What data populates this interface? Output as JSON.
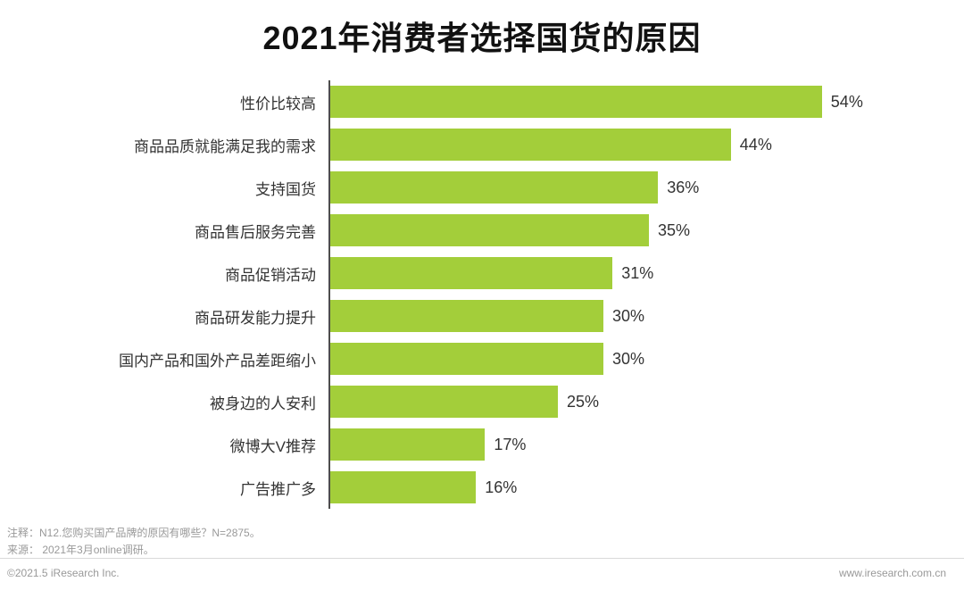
{
  "title": "2021年消费者选择国货的原因",
  "chart_data": {
    "type": "bar",
    "orientation": "horizontal",
    "title": "2021年消费者选择国货的原因",
    "categories": [
      "性价比较高",
      "商品品质就能满足我的需求",
      "支持国货",
      "商品售后服务完善",
      "商品促销活动",
      "商品研发能力提升",
      "国内产品和国外产品差距缩小",
      "被身边的人安利",
      "微博大V推荐",
      "广告推广多"
    ],
    "values": [
      54,
      44,
      36,
      35,
      31,
      30,
      30,
      25,
      17,
      16
    ],
    "value_suffix": "%",
    "bar_color": "#a3ce3a",
    "axis_color": "#4d4d4d",
    "xlim": [
      0,
      60
    ],
    "grid": false,
    "legend": "none",
    "xlabel": "",
    "ylabel": ""
  },
  "notes": [
    "注释：N12.您购买国产品牌的原因有哪些？N=2875。",
    "来源： 2021年3月online调研。"
  ],
  "footer": {
    "copyright": "©2021.5 iResearch Inc.",
    "website": "www.iresearch.com.cn"
  }
}
